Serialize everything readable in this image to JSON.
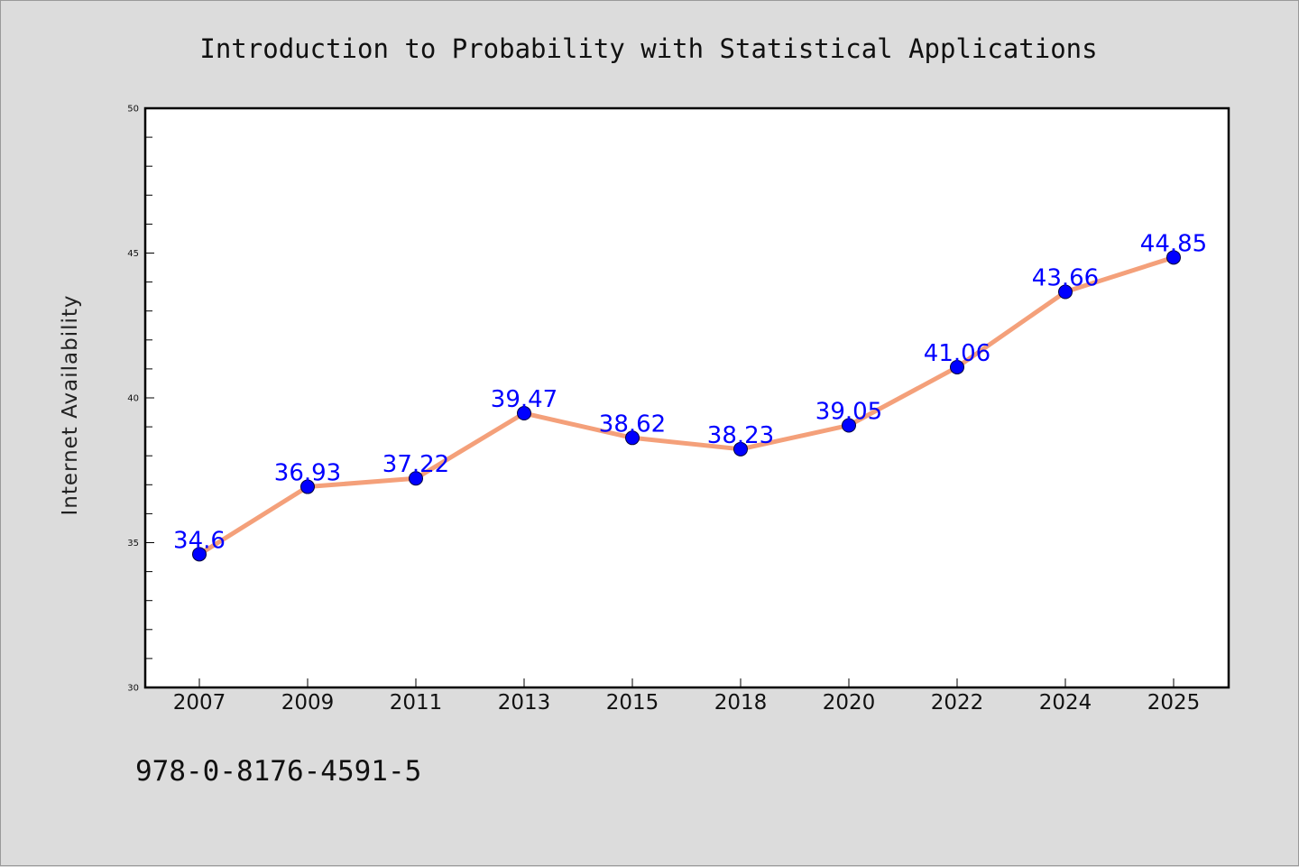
{
  "chart_data": {
    "type": "line",
    "title": "Introduction to Probability with Statistical Applications",
    "xlabel": "",
    "ylabel": "Internet Availability",
    "categories": [
      "2007",
      "2009",
      "2011",
      "2013",
      "2015",
      "2018",
      "2020",
      "2022",
      "2024",
      "2025"
    ],
    "series": [
      {
        "values": [
          34.6,
          36.93,
          37.22,
          39.47,
          38.62,
          38.23,
          39.05,
          41.06,
          43.66,
          44.85
        ],
        "labels": [
          "34.6",
          "36.93",
          "37.22",
          "39.47",
          "38.62",
          "38.23",
          "39.05",
          "41.06",
          "43.66",
          "44.85"
        ]
      }
    ],
    "ylim": [
      30,
      50
    ],
    "yticks": [
      "30",
      "35",
      "40",
      "45",
      "50"
    ],
    "grid": false,
    "colors": {
      "line": "#f4a07a",
      "marker": "#0000ff",
      "label": "#0000ff"
    }
  },
  "footer": {
    "isbn": "978-0-8176-4591-5"
  }
}
